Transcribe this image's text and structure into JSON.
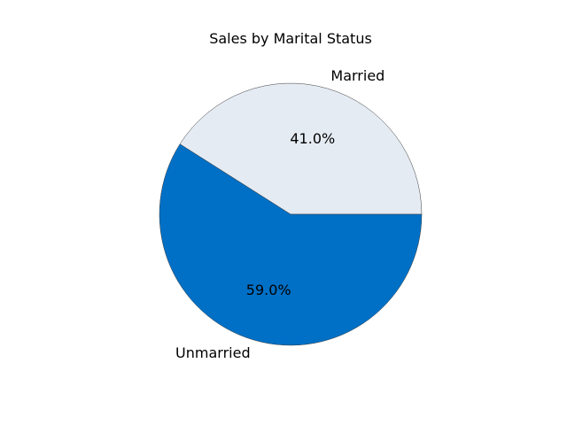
{
  "chart_data": {
    "type": "pie",
    "title": "Sales by Marital Status",
    "slices": [
      {
        "label": "Married",
        "value": 41.0,
        "pct_label": "41.0%",
        "color": "#e5ebf3"
      },
      {
        "label": "Unmarried",
        "value": 59.0,
        "pct_label": "59.0%",
        "color": "#0070c6"
      }
    ],
    "edge_color": "#3d3d3d",
    "start_angle_deg": 0,
    "direction": "counterclockwise",
    "legend": "none"
  }
}
